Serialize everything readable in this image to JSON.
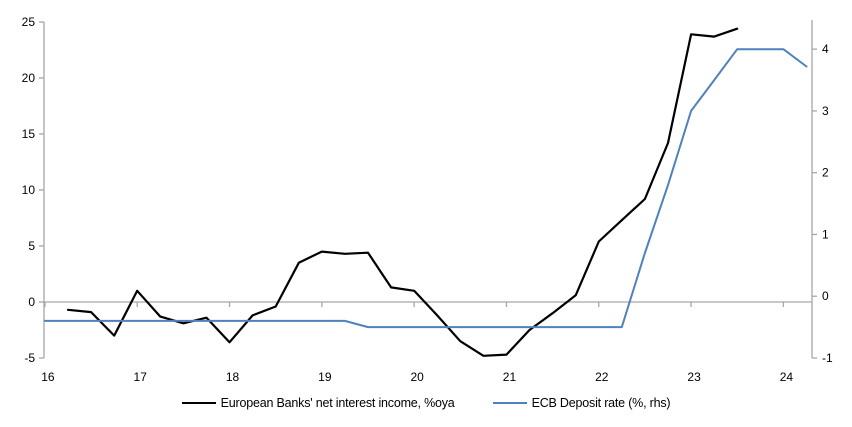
{
  "chart_data": {
    "type": "line",
    "title": "",
    "series": [
      {
        "name": "European Banks' net interest income, %oya",
        "axis": "left",
        "color": "#000000",
        "stroke_width": 2.2,
        "x": [
          2016.25,
          2016.5,
          2016.75,
          2017.0,
          2017.25,
          2017.5,
          2017.75,
          2018.0,
          2018.25,
          2018.5,
          2018.75,
          2019.0,
          2019.25,
          2019.5,
          2019.75,
          2020.0,
          2020.25,
          2020.5,
          2020.75,
          2021.0,
          2021.25,
          2021.5,
          2021.75,
          2022.0,
          2022.25,
          2022.5,
          2022.75,
          2023.0,
          2023.25,
          2023.5
        ],
        "values": [
          -0.7,
          -0.9,
          -3.0,
          1.0,
          -1.3,
          -1.9,
          -1.4,
          -3.6,
          -1.2,
          -0.4,
          3.5,
          4.5,
          4.3,
          4.4,
          1.3,
          1.0,
          -1.2,
          -3.5,
          -4.8,
          -4.7,
          -2.5,
          -1.0,
          0.6,
          5.4,
          7.3,
          9.2,
          14.2,
          23.9,
          23.7,
          24.4
        ]
      },
      {
        "name": "ECB Deposit rate (%, rhs)",
        "axis": "right",
        "color": "#4f81bd",
        "stroke_width": 2,
        "x": [
          2016.0,
          2019.25,
          2019.5,
          2022.25,
          2022.5,
          2022.75,
          2023.0,
          2023.25,
          2023.5,
          2023.75,
          2024.0,
          2024.25
        ],
        "values": [
          -0.4,
          -0.4,
          -0.5,
          -0.5,
          0.7,
          1.8,
          3.0,
          3.5,
          4.0,
          4.0,
          4.0,
          3.72
        ]
      }
    ],
    "left_axis": {
      "tick_values": [
        -5,
        0,
        5,
        10,
        15,
        20,
        25
      ],
      "tick_labels": [
        "-5",
        "0",
        "5",
        "10",
        "15",
        "20",
        "25"
      ],
      "range": [
        -5,
        25
      ]
    },
    "right_axis": {
      "tick_values": [
        -1,
        0,
        1,
        2,
        3,
        4
      ],
      "tick_labels": [
        "-1",
        "0",
        "1",
        "2",
        "3",
        "4"
      ],
      "range": [
        -1.0,
        4.44
      ]
    },
    "x_axis": {
      "tick_values": [
        2016,
        2017,
        2018,
        2019,
        2020,
        2021,
        2022,
        2023,
        2024
      ],
      "tick_labels": [
        "16",
        "17",
        "18",
        "19",
        "20",
        "21",
        "22",
        "23",
        "24"
      ],
      "range": [
        2015.99,
        2024.31
      ]
    },
    "grid": "zero-line-only",
    "legend_position": "bottom",
    "axis_color": "#a6a6a6"
  }
}
